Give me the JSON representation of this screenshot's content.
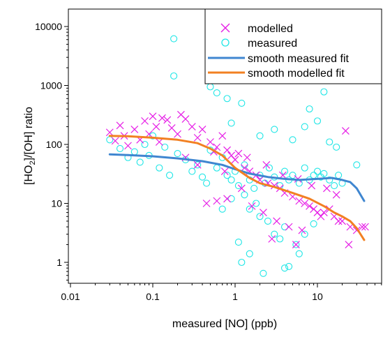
{
  "chart_data": {
    "type": "scatter",
    "title": "",
    "xlabel": "measured [NO] (ppb)",
    "ylabel": {
      "prefix": "[HO",
      "subscript": "2",
      "suffix": "]/[OH] ratio"
    },
    "x_scale": "log",
    "y_scale": "log",
    "xlim": [
      0.01,
      60
    ],
    "ylim": [
      0.3,
      20000
    ],
    "x_ticks": [
      {
        "value": 0.01,
        "label": "0.01"
      },
      {
        "value": 0.1,
        "label": "0.1"
      },
      {
        "value": 1,
        "label": "1"
      },
      {
        "value": 10,
        "label": "10"
      }
    ],
    "y_ticks": [
      {
        "value": 1,
        "label": "1"
      },
      {
        "value": 10,
        "label": "10"
      },
      {
        "value": 100,
        "label": "100"
      },
      {
        "value": 1000,
        "label": "1000"
      },
      {
        "value": 10000,
        "label": "10000"
      }
    ],
    "grid": false,
    "legend_position": "top-right",
    "colors": {
      "modelled": "#e61ee6",
      "measured": "#1ee6e6",
      "smooth_measured_fit": "#3f86d0",
      "smooth_modelled_fit": "#f28022"
    },
    "series": [
      {
        "name": "modelled",
        "kind": "scatter",
        "marker": "x",
        "points": [
          [
            0.03,
            160
          ],
          [
            0.035,
            115
          ],
          [
            0.04,
            210
          ],
          [
            0.045,
            140
          ],
          [
            0.05,
            95
          ],
          [
            0.06,
            180
          ],
          [
            0.07,
            120
          ],
          [
            0.08,
            250
          ],
          [
            0.09,
            150
          ],
          [
            0.1,
            300
          ],
          [
            0.11,
            200
          ],
          [
            0.12,
            110
          ],
          [
            0.13,
            280
          ],
          [
            0.15,
            260
          ],
          [
            0.17,
            190
          ],
          [
            0.2,
            150
          ],
          [
            0.22,
            320
          ],
          [
            0.25,
            270
          ],
          [
            0.3,
            200
          ],
          [
            0.35,
            130
          ],
          [
            0.4,
            180
          ],
          [
            0.5,
            110
          ],
          [
            0.6,
            90
          ],
          [
            0.7,
            140
          ],
          [
            0.8,
            80
          ],
          [
            0.9,
            65
          ],
          [
            1.0,
            55
          ],
          [
            1.1,
            70
          ],
          [
            1.3,
            40
          ],
          [
            1.5,
            35
          ],
          [
            1.8,
            30
          ],
          [
            2.0,
            25
          ],
          [
            2.5,
            22
          ],
          [
            3.0,
            20
          ],
          [
            3.5,
            18
          ],
          [
            4.0,
            15
          ],
          [
            5.0,
            13
          ],
          [
            6.0,
            11
          ],
          [
            7.0,
            10
          ],
          [
            8.0,
            9
          ],
          [
            9.0,
            8
          ],
          [
            10.0,
            7
          ],
          [
            11,
            6
          ],
          [
            12,
            7
          ],
          [
            14,
            8
          ],
          [
            16,
            6
          ],
          [
            18,
            5
          ],
          [
            20,
            5
          ],
          [
            25,
            4
          ],
          [
            30,
            3.5
          ],
          [
            35,
            4
          ],
          [
            38,
            4
          ],
          [
            0.45,
            10
          ],
          [
            0.6,
            11
          ],
          [
            0.8,
            12
          ],
          [
            1.2,
            18
          ],
          [
            1.6,
            9
          ],
          [
            2.2,
            7
          ],
          [
            3.2,
            5
          ],
          [
            4.5,
            4
          ],
          [
            6.5,
            3.5
          ],
          [
            2.8,
            2.5
          ],
          [
            5.5,
            2
          ],
          [
            24,
            2
          ],
          [
            0.25,
            60
          ],
          [
            0.35,
            45
          ],
          [
            0.55,
            75
          ],
          [
            0.75,
            35
          ],
          [
            1.4,
            60
          ],
          [
            2.4,
            45
          ],
          [
            3.8,
            30
          ],
          [
            5.8,
            26
          ],
          [
            8.5,
            20
          ],
          [
            13,
            18
          ],
          [
            17,
            14
          ],
          [
            22,
            170
          ]
        ]
      },
      {
        "name": "measured",
        "kind": "scatter",
        "marker": "circle",
        "points": [
          [
            0.03,
            120
          ],
          [
            0.04,
            85
          ],
          [
            0.05,
            60
          ],
          [
            0.06,
            75
          ],
          [
            0.07,
            50
          ],
          [
            0.08,
            100
          ],
          [
            0.09,
            65
          ],
          [
            0.1,
            140
          ],
          [
            0.12,
            40
          ],
          [
            0.14,
            90
          ],
          [
            0.16,
            30
          ],
          [
            0.18,
            6200
          ],
          [
            0.18,
            1450
          ],
          [
            0.2,
            70
          ],
          [
            0.25,
            55
          ],
          [
            0.3,
            35
          ],
          [
            0.35,
            45
          ],
          [
            0.4,
            28
          ],
          [
            0.45,
            22
          ],
          [
            0.5,
            80
          ],
          [
            0.6,
            40
          ],
          [
            0.7,
            60
          ],
          [
            0.8,
            30
          ],
          [
            0.9,
            25
          ],
          [
            1.0,
            35
          ],
          [
            1.1,
            20
          ],
          [
            1.3,
            45
          ],
          [
            1.5,
            25
          ],
          [
            1.7,
            18
          ],
          [
            2.0,
            30
          ],
          [
            2.3,
            22
          ],
          [
            2.6,
            40
          ],
          [
            3.0,
            28
          ],
          [
            3.5,
            20
          ],
          [
            4.0,
            35
          ],
          [
            4.5,
            25
          ],
          [
            5.0,
            30
          ],
          [
            6.0,
            22
          ],
          [
            7.0,
            40
          ],
          [
            8.0,
            25
          ],
          [
            9.0,
            30
          ],
          [
            10,
            35
          ],
          [
            11,
            28
          ],
          [
            12,
            32
          ],
          [
            14,
            25
          ],
          [
            16,
            20
          ],
          [
            18,
            30
          ],
          [
            20,
            22
          ],
          [
            30,
            45
          ],
          [
            0.5,
            950
          ],
          [
            0.6,
            750
          ],
          [
            0.8,
            600
          ],
          [
            0.9,
            230
          ],
          [
            1.2,
            500
          ],
          [
            2.0,
            140
          ],
          [
            3.0,
            180
          ],
          [
            5.0,
            120
          ],
          [
            7.0,
            200
          ],
          [
            8.0,
            400
          ],
          [
            10,
            250
          ],
          [
            12,
            780
          ],
          [
            14,
            110
          ],
          [
            17,
            90
          ],
          [
            1.5,
            8
          ],
          [
            2.0,
            6
          ],
          [
            2.5,
            5
          ],
          [
            3.0,
            3
          ],
          [
            3.5,
            2.5
          ],
          [
            4.0,
            4
          ],
          [
            1.1,
            2.2
          ],
          [
            1.5,
            1.4
          ],
          [
            1.2,
            1.0
          ],
          [
            2.2,
            0.65
          ],
          [
            4.0,
            0.8
          ],
          [
            4.5,
            0.85
          ],
          [
            6.0,
            1.4
          ],
          [
            5.5,
            2.0
          ],
          [
            7.0,
            3.0
          ],
          [
            9.0,
            4.5
          ],
          [
            0.7,
            8
          ],
          [
            0.9,
            12
          ],
          [
            1.3,
            14
          ],
          [
            1.8,
            10
          ]
        ]
      },
      {
        "name": "smooth measured fit",
        "kind": "line",
        "points": [
          [
            0.03,
            68
          ],
          [
            0.05,
            66
          ],
          [
            0.1,
            63
          ],
          [
            0.2,
            58
          ],
          [
            0.4,
            52
          ],
          [
            0.7,
            45
          ],
          [
            1,
            38
          ],
          [
            1.5,
            32
          ],
          [
            2.5,
            28
          ],
          [
            4,
            26
          ],
          [
            6,
            25
          ],
          [
            10,
            26
          ],
          [
            15,
            27
          ],
          [
            20,
            25
          ],
          [
            25,
            23
          ],
          [
            30,
            18
          ],
          [
            37,
            11
          ]
        ]
      },
      {
        "name": "smooth modelled fit",
        "kind": "line",
        "points": [
          [
            0.03,
            140
          ],
          [
            0.05,
            138
          ],
          [
            0.1,
            130
          ],
          [
            0.2,
            120
          ],
          [
            0.35,
            105
          ],
          [
            0.5,
            85
          ],
          [
            0.7,
            65
          ],
          [
            1,
            40
          ],
          [
            1.5,
            27
          ],
          [
            2,
            22
          ],
          [
            3,
            19
          ],
          [
            5,
            15
          ],
          [
            8,
            12
          ],
          [
            12,
            9
          ],
          [
            16,
            7
          ],
          [
            20,
            6
          ],
          [
            25,
            5
          ],
          [
            30,
            3.8
          ],
          [
            37,
            2.4
          ]
        ]
      }
    ]
  }
}
